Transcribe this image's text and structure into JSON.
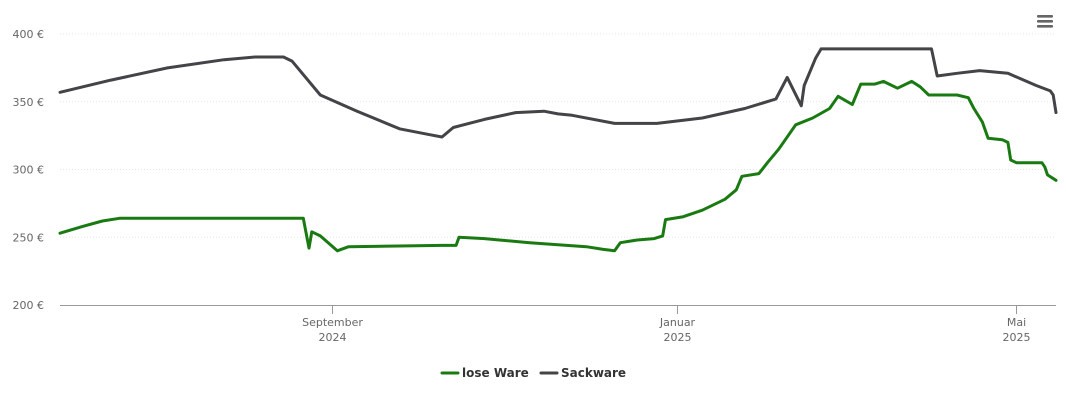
{
  "chart_data": {
    "type": "line",
    "title": "",
    "xlabel": "",
    "ylabel": "",
    "ylim": [
      200,
      400
    ],
    "y_ticks": [
      {
        "value": 200,
        "label": "200 €"
      },
      {
        "value": 250,
        "label": "250 €"
      },
      {
        "value": 300,
        "label": "300 €"
      },
      {
        "value": 350,
        "label": "350 €"
      },
      {
        "value": 400,
        "label": "400 €"
      }
    ],
    "xlim": [
      "2024-05-28",
      "2025-05-15"
    ],
    "x_ticks": [
      {
        "date": "2024-09-01",
        "line1": "September",
        "line2": "2024"
      },
      {
        "date": "2025-01-01",
        "line1": "Januar",
        "line2": "2025"
      },
      {
        "date": "2025-05-01",
        "line1": "Mai",
        "line2": "2025"
      }
    ],
    "grid": true,
    "legend_position": "bottom-center",
    "series": [
      {
        "name": "lose Ware",
        "color": "#1a7a12",
        "points": [
          [
            "2024-05-28",
            253
          ],
          [
            "2024-06-05",
            258
          ],
          [
            "2024-06-12",
            262
          ],
          [
            "2024-06-18",
            264
          ],
          [
            "2024-08-15",
            264
          ],
          [
            "2024-08-22",
            264
          ],
          [
            "2024-08-24",
            242
          ],
          [
            "2024-08-25",
            254
          ],
          [
            "2024-08-28",
            251
          ],
          [
            "2024-09-03",
            240
          ],
          [
            "2024-09-07",
            243
          ],
          [
            "2024-10-10",
            244
          ],
          [
            "2024-10-15",
            244
          ],
          [
            "2024-10-16",
            250
          ],
          [
            "2024-10-25",
            249
          ],
          [
            "2024-11-10",
            246
          ],
          [
            "2024-11-30",
            243
          ],
          [
            "2024-12-06",
            241
          ],
          [
            "2024-12-10",
            240
          ],
          [
            "2024-12-12",
            246
          ],
          [
            "2024-12-18",
            248
          ],
          [
            "2024-12-24",
            249
          ],
          [
            "2024-12-27",
            251
          ],
          [
            "2024-12-28",
            263
          ],
          [
            "2025-01-03",
            265
          ],
          [
            "2025-01-10",
            270
          ],
          [
            "2025-01-18",
            278
          ],
          [
            "2025-01-22",
            285
          ],
          [
            "2025-01-24",
            295
          ],
          [
            "2025-01-30",
            297
          ],
          [
            "2025-02-02",
            305
          ],
          [
            "2025-02-06",
            315
          ],
          [
            "2025-02-12",
            333
          ],
          [
            "2025-02-18",
            338
          ],
          [
            "2025-02-24",
            345
          ],
          [
            "2025-02-27",
            354
          ],
          [
            "2025-03-04",
            348
          ],
          [
            "2025-03-07",
            363
          ],
          [
            "2025-03-12",
            363
          ],
          [
            "2025-03-15",
            365
          ],
          [
            "2025-03-20",
            360
          ],
          [
            "2025-03-25",
            365
          ],
          [
            "2025-03-28",
            361
          ],
          [
            "2025-03-31",
            355
          ],
          [
            "2025-04-10",
            355
          ],
          [
            "2025-04-14",
            353
          ],
          [
            "2025-04-16",
            345
          ],
          [
            "2025-04-19",
            335
          ],
          [
            "2025-04-21",
            323
          ],
          [
            "2025-04-26",
            322
          ],
          [
            "2025-04-28",
            320
          ],
          [
            "2025-04-29",
            307
          ],
          [
            "2025-05-01",
            305
          ],
          [
            "2025-05-10",
            305
          ],
          [
            "2025-05-11",
            302
          ],
          [
            "2025-05-12",
            296
          ],
          [
            "2025-05-15",
            292
          ]
        ]
      },
      {
        "name": "Sackware",
        "color": "#434348",
        "points": [
          [
            "2024-05-28",
            357
          ],
          [
            "2024-06-15",
            366
          ],
          [
            "2024-07-05",
            375
          ],
          [
            "2024-07-25",
            381
          ],
          [
            "2024-08-05",
            383
          ],
          [
            "2024-08-15",
            383
          ],
          [
            "2024-08-18",
            380
          ],
          [
            "2024-08-28",
            355
          ],
          [
            "2024-09-10",
            343
          ],
          [
            "2024-09-25",
            330
          ],
          [
            "2024-10-05",
            326
          ],
          [
            "2024-10-10",
            324
          ],
          [
            "2024-10-14",
            331
          ],
          [
            "2024-10-25",
            337
          ],
          [
            "2024-11-05",
            342
          ],
          [
            "2024-11-15",
            343
          ],
          [
            "2024-11-20",
            341
          ],
          [
            "2024-11-25",
            340
          ],
          [
            "2024-12-10",
            334
          ],
          [
            "2024-12-25",
            334
          ],
          [
            "2025-01-10",
            338
          ],
          [
            "2025-01-25",
            345
          ],
          [
            "2025-02-05",
            352
          ],
          [
            "2025-02-09",
            368
          ],
          [
            "2025-02-14",
            347
          ],
          [
            "2025-02-15",
            362
          ],
          [
            "2025-02-19",
            382
          ],
          [
            "2025-02-21",
            389
          ],
          [
            "2025-03-20",
            389
          ],
          [
            "2025-04-01",
            389
          ],
          [
            "2025-04-03",
            369
          ],
          [
            "2025-04-10",
            371
          ],
          [
            "2025-04-18",
            373
          ],
          [
            "2025-04-28",
            371
          ],
          [
            "2025-05-08",
            362
          ],
          [
            "2025-05-13",
            358
          ],
          [
            "2025-05-14",
            355
          ],
          [
            "2025-05-15",
            342
          ]
        ]
      }
    ]
  },
  "legend": {
    "item1": "lose Ware",
    "item2": "Sackware"
  },
  "menu": {
    "icon": "hamburger-menu-icon"
  }
}
